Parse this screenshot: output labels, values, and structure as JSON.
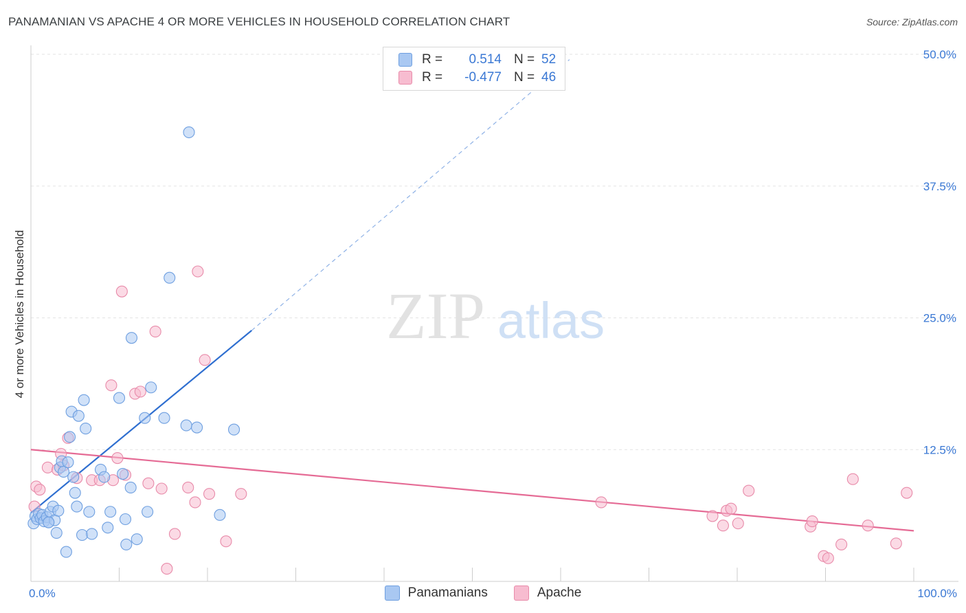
{
  "title": "PANAMANIAN VS APACHE 4 OR MORE VEHICLES IN HOUSEHOLD CORRELATION CHART",
  "source": "Source: ZipAtlas.com",
  "watermark": {
    "zip": "ZIP",
    "atlas": "atlas"
  },
  "legend_stats": [
    {
      "r_label": "R =",
      "r_value": "0.514",
      "n_label": "N =",
      "n_value": "52",
      "color": "#a9c8f2",
      "border": "#6e9fe0"
    },
    {
      "r_label": "R =",
      "r_value": "-0.477",
      "n_label": "N =",
      "n_value": "46",
      "color": "#f7bcd0",
      "border": "#e88aa9"
    }
  ],
  "bottom_legend": [
    {
      "label": "Panamanians",
      "color": "#a9c8f2",
      "border": "#6e9fe0"
    },
    {
      "label": "Apache",
      "color": "#f7bcd0",
      "border": "#e88aa9"
    }
  ],
  "chart_data": {
    "type": "scatter",
    "title": "PANAMANIAN VS APACHE 4 OR MORE VEHICLES IN HOUSEHOLD CORRELATION CHART",
    "xlabel": "",
    "ylabel": "4 or more Vehicles in Household",
    "xlim": [
      0,
      100
    ],
    "ylim": [
      0,
      50
    ],
    "x_tick_labels": {
      "min": "0.0%",
      "max": "100.0%"
    },
    "y_ticks": [
      12.5,
      25.0,
      37.5,
      50.0
    ],
    "y_tick_labels": [
      "12.5%",
      "25.0%",
      "37.5%",
      "50.0%"
    ],
    "series": [
      {
        "name": "Panamanians",
        "color": "#6e9fe0",
        "fill": "#a9c8f2",
        "trend": {
          "x0": 0,
          "y0": 6.5,
          "x1": 25,
          "y1": 23.8,
          "x_dash_end": 61,
          "y_dash_end": 49.5,
          "color": "#2f6fd0"
        },
        "points": [
          [
            0.3,
            5.5
          ],
          [
            0.5,
            6.2
          ],
          [
            0.7,
            5.9
          ],
          [
            0.9,
            6.4
          ],
          [
            1.1,
            6.0
          ],
          [
            1.3,
            6.3
          ],
          [
            1.5,
            5.7
          ],
          [
            1.8,
            6.1
          ],
          [
            2.0,
            5.6
          ],
          [
            2.2,
            6.6
          ],
          [
            2.5,
            7.1
          ],
          [
            2.7,
            5.8
          ],
          [
            2.9,
            4.6
          ],
          [
            3.1,
            6.7
          ],
          [
            3.3,
            10.8
          ],
          [
            3.5,
            11.4
          ],
          [
            3.7,
            10.4
          ],
          [
            4.0,
            2.8
          ],
          [
            4.2,
            11.3
          ],
          [
            4.4,
            13.7
          ],
          [
            4.6,
            16.1
          ],
          [
            4.8,
            9.9
          ],
          [
            5.0,
            8.4
          ],
          [
            5.2,
            7.1
          ],
          [
            5.4,
            15.7
          ],
          [
            5.8,
            4.4
          ],
          [
            6.0,
            17.2
          ],
          [
            6.2,
            14.5
          ],
          [
            6.6,
            6.6
          ],
          [
            6.9,
            4.5
          ],
          [
            7.9,
            10.6
          ],
          [
            8.3,
            9.9
          ],
          [
            8.7,
            5.1
          ],
          [
            9.0,
            6.6
          ],
          [
            10.0,
            17.4
          ],
          [
            10.4,
            10.2
          ],
          [
            10.7,
            5.9
          ],
          [
            10.8,
            3.5
          ],
          [
            11.3,
            8.9
          ],
          [
            11.4,
            23.1
          ],
          [
            12.0,
            4.0
          ],
          [
            12.9,
            15.5
          ],
          [
            13.2,
            6.6
          ],
          [
            13.6,
            18.4
          ],
          [
            15.1,
            15.5
          ],
          [
            15.7,
            28.8
          ],
          [
            17.6,
            14.8
          ],
          [
            17.9,
            42.6
          ],
          [
            18.8,
            14.6
          ],
          [
            21.4,
            6.3
          ],
          [
            23.0,
            14.4
          ],
          [
            2.0,
            5.6
          ]
        ]
      },
      {
        "name": "Apache",
        "color": "#e88aa9",
        "fill": "#f7bcd0",
        "trend": {
          "x0": 0,
          "y0": 12.5,
          "x1": 100,
          "y1": 4.8,
          "color": "#e56b95"
        },
        "points": [
          [
            0.4,
            7.1
          ],
          [
            0.6,
            9.0
          ],
          [
            1.0,
            8.7
          ],
          [
            1.9,
            10.8
          ],
          [
            3.0,
            10.6
          ],
          [
            3.4,
            12.1
          ],
          [
            3.7,
            11.0
          ],
          [
            4.2,
            13.6
          ],
          [
            5.2,
            9.8
          ],
          [
            6.9,
            9.6
          ],
          [
            7.8,
            9.6
          ],
          [
            9.1,
            18.6
          ],
          [
            9.3,
            9.6
          ],
          [
            9.8,
            11.7
          ],
          [
            10.3,
            27.5
          ],
          [
            10.7,
            10.1
          ],
          [
            11.8,
            17.8
          ],
          [
            12.4,
            18.0
          ],
          [
            13.3,
            9.3
          ],
          [
            14.1,
            23.7
          ],
          [
            14.8,
            8.8
          ],
          [
            15.4,
            1.2
          ],
          [
            16.3,
            4.5
          ],
          [
            17.8,
            8.9
          ],
          [
            18.6,
            7.5
          ],
          [
            18.9,
            29.4
          ],
          [
            19.7,
            21.0
          ],
          [
            20.2,
            8.3
          ],
          [
            22.1,
            3.8
          ],
          [
            23.8,
            8.3
          ],
          [
            64.6,
            7.5
          ],
          [
            77.2,
            6.2
          ],
          [
            78.4,
            5.3
          ],
          [
            78.8,
            6.7
          ],
          [
            79.3,
            6.9
          ],
          [
            80.1,
            5.5
          ],
          [
            81.3,
            8.6
          ],
          [
            88.3,
            5.2
          ],
          [
            88.5,
            5.7
          ],
          [
            89.8,
            2.4
          ],
          [
            90.3,
            2.2
          ],
          [
            91.8,
            3.5
          ],
          [
            93.1,
            9.7
          ],
          [
            94.8,
            5.3
          ],
          [
            98.0,
            3.6
          ],
          [
            99.2,
            8.4
          ]
        ]
      }
    ]
  }
}
